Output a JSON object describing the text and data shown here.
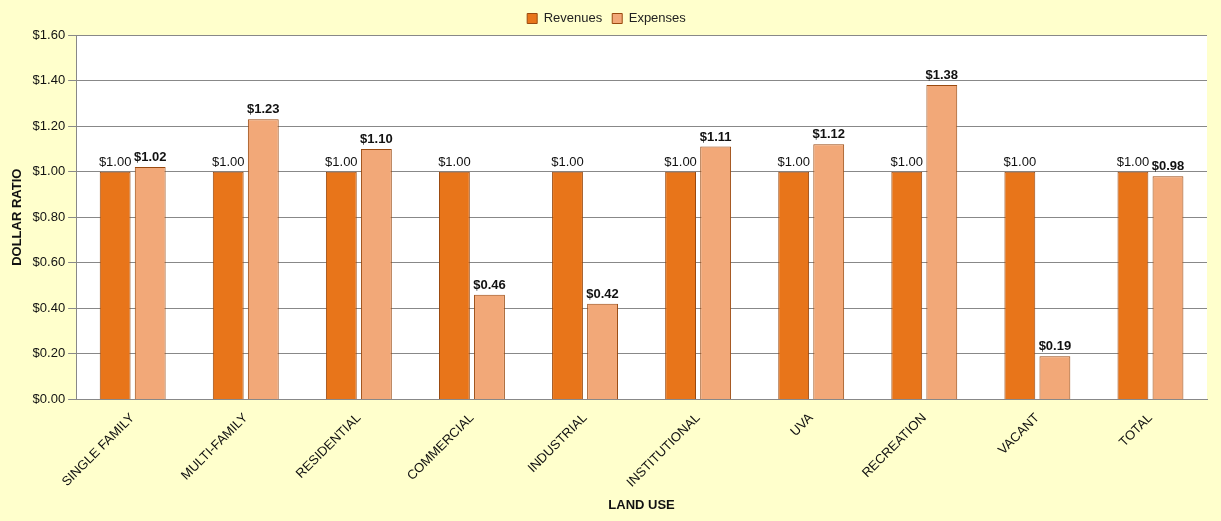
{
  "chart_data": {
    "type": "bar",
    "xlabel": "LAND USE",
    "ylabel": "DOLLAR RATIO",
    "categories": [
      "SINGLE FAMILY",
      "MULTI-FAMILY",
      "RESIDENTIAL",
      "COMMERCIAL",
      "INDUSTRIAL",
      "INSTITUTIONAL",
      "UVA",
      "RECREATION",
      "VACANT",
      "TOTAL"
    ],
    "series": [
      {
        "name": "Revenues",
        "color": "#e8751a",
        "values": [
          1.0,
          1.0,
          1.0,
          1.0,
          1.0,
          1.0,
          1.0,
          1.0,
          1.0,
          1.0
        ],
        "value_labels": [
          "$1.00",
          "$1.00",
          "$1.00",
          "$1.00",
          "$1.00",
          "$1.00",
          "$1.00",
          "$1.00",
          "$1.00",
          "$1.00"
        ]
      },
      {
        "name": "Expenses",
        "color": "#f2a878",
        "values": [
          1.02,
          1.23,
          1.1,
          0.46,
          0.42,
          1.11,
          1.12,
          1.38,
          0.19,
          0.98
        ],
        "value_labels": [
          "$1.02",
          "$1.23",
          "$1.10",
          "$0.46",
          "$0.42",
          "$1.11",
          "$1.12",
          "$1.38",
          "$0.19",
          "$0.98"
        ]
      }
    ],
    "ylim": [
      0,
      1.6
    ],
    "yticks": [
      {
        "value": 0,
        "label": "$0.00"
      },
      {
        "value": 0.2,
        "label": "$0.20"
      },
      {
        "value": 0.4,
        "label": "$0.40"
      },
      {
        "value": 0.6,
        "label": "$0.60"
      },
      {
        "value": 0.8,
        "label": "$0.80"
      },
      {
        "value": 1.0,
        "label": "$1.00"
      },
      {
        "value": 1.2,
        "label": "$1.20"
      },
      {
        "value": 1.4,
        "label": "$1.40"
      },
      {
        "value": 1.6,
        "label": "$1.60"
      }
    ],
    "grid": "y",
    "legend": "top"
  }
}
